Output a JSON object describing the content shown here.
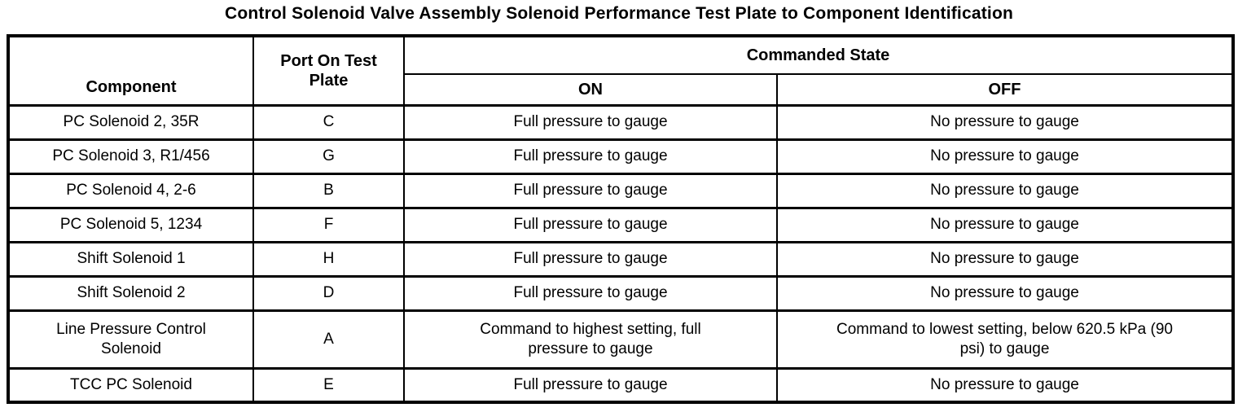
{
  "title": "Control Solenoid Valve Assembly Solenoid Performance Test Plate to Component Identification",
  "colors": {
    "background": "#ffffff",
    "text": "#000000",
    "border": "#000000"
  },
  "table": {
    "headers": {
      "component": "Component",
      "port": "Port On Test Plate",
      "commanded_state": "Commanded State",
      "on": "ON",
      "off": "OFF"
    },
    "rows": [
      {
        "component": "PC Solenoid 2, 35R",
        "port": "C",
        "on": "Full pressure to gauge",
        "off": "No pressure to gauge"
      },
      {
        "component": "PC Solenoid 3, R1/456",
        "port": "G",
        "on": "Full pressure to gauge",
        "off": "No pressure to gauge"
      },
      {
        "component": "PC Solenoid 4, 2-6",
        "port": "B",
        "on": "Full pressure to gauge",
        "off": "No pressure to gauge"
      },
      {
        "component": "PC Solenoid 5, 1234",
        "port": "F",
        "on": "Full pressure to gauge",
        "off": "No pressure to gauge"
      },
      {
        "component": "Shift Solenoid 1",
        "port": "H",
        "on": "Full pressure to gauge",
        "off": "No pressure to gauge"
      },
      {
        "component": "Shift Solenoid 2",
        "port": "D",
        "on": "Full pressure to gauge",
        "off": "No pressure to gauge"
      },
      {
        "component": "Line Pressure Control Solenoid",
        "port": "A",
        "on": "Command to highest setting, full pressure to gauge",
        "off": "Command to lowest setting, below 620.5 kPa (90 psi) to gauge"
      },
      {
        "component": "TCC PC Solenoid",
        "port": "E",
        "on": "Full pressure to gauge",
        "off": "No pressure to gauge"
      }
    ]
  }
}
